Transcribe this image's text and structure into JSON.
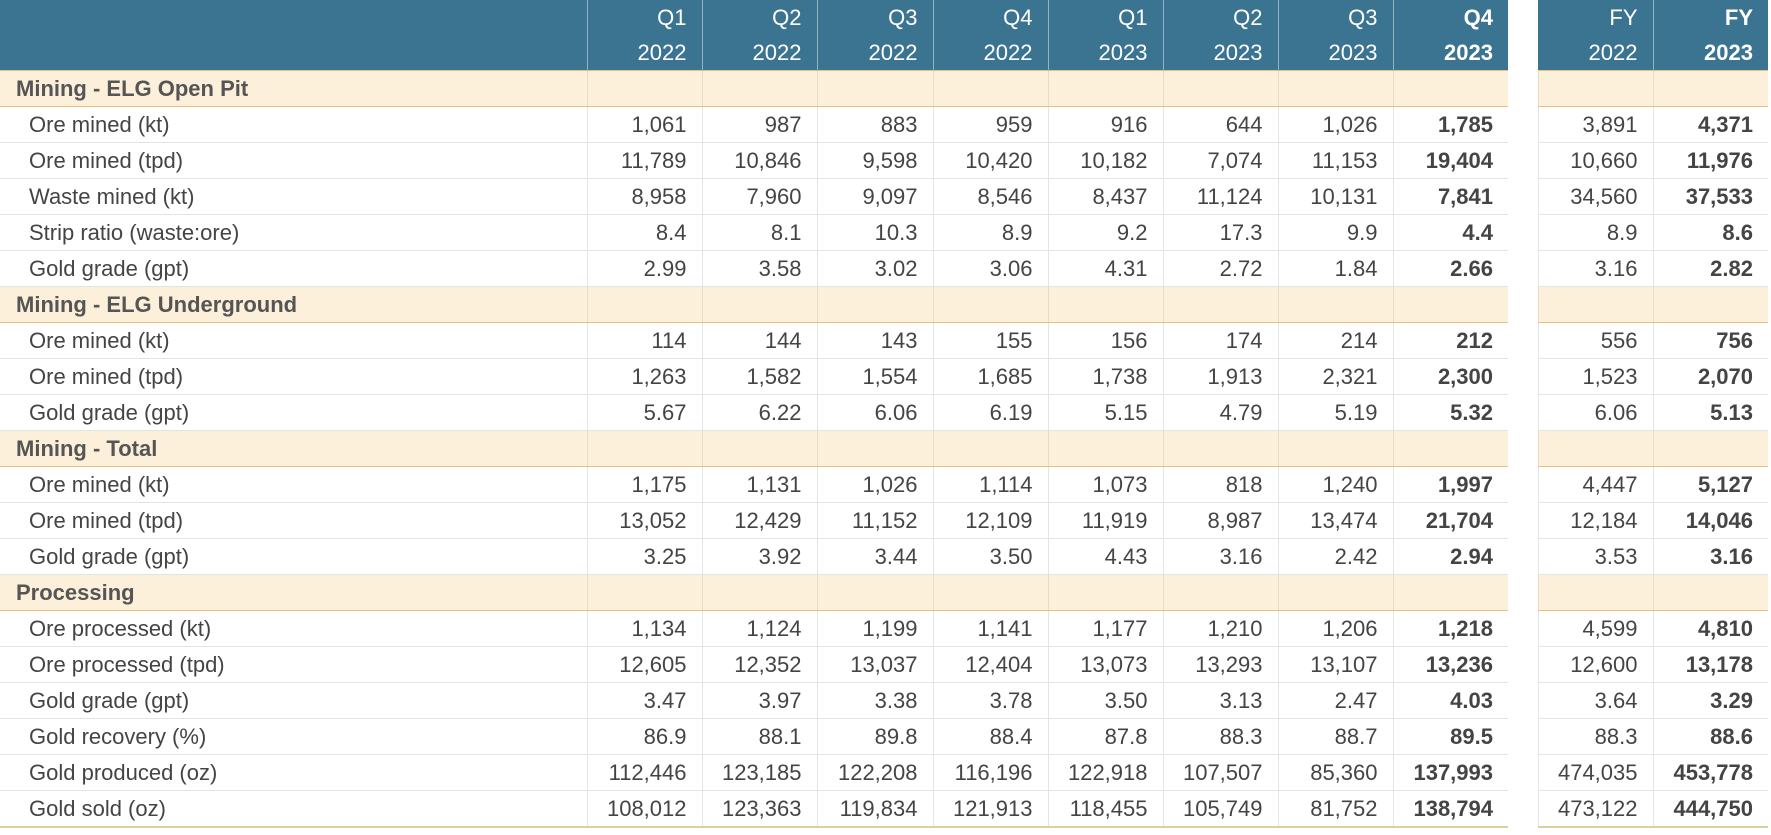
{
  "columns": [
    {
      "line1": "Q1",
      "line2": "2022",
      "bold": false
    },
    {
      "line1": "Q2",
      "line2": "2022",
      "bold": false
    },
    {
      "line1": "Q3",
      "line2": "2022",
      "bold": false
    },
    {
      "line1": "Q4",
      "line2": "2022",
      "bold": false
    },
    {
      "line1": "Q1",
      "line2": "2023",
      "bold": false
    },
    {
      "line1": "Q2",
      "line2": "2023",
      "bold": false
    },
    {
      "line1": "Q3",
      "line2": "2023",
      "bold": false
    },
    {
      "line1": "Q4",
      "line2": "2023",
      "bold": true
    },
    {
      "line1": "FY",
      "line2": "2022",
      "bold": false
    },
    {
      "line1": "FY",
      "line2": "2023",
      "bold": true
    }
  ],
  "sections": [
    {
      "title": "Mining - ELG Open Pit",
      "rows": [
        {
          "label": "Ore mined (kt)",
          "values": [
            "1,061",
            "987",
            "883",
            "959",
            "916",
            "644",
            "1,026",
            "1,785",
            "3,891",
            "4,371"
          ]
        },
        {
          "label": "Ore mined (tpd)",
          "values": [
            "11,789",
            "10,846",
            "9,598",
            "10,420",
            "10,182",
            "7,074",
            "11,153",
            "19,404",
            "10,660",
            "11,976"
          ]
        },
        {
          "label": "Waste mined (kt)",
          "values": [
            "8,958",
            "7,960",
            "9,097",
            "8,546",
            "8,437",
            "11,124",
            "10,131",
            "7,841",
            "34,560",
            "37,533"
          ]
        },
        {
          "label": "Strip ratio (waste:ore)",
          "values": [
            "8.4",
            "8.1",
            "10.3",
            "8.9",
            "9.2",
            "17.3",
            "9.9",
            "4.4",
            "8.9",
            "8.6"
          ]
        },
        {
          "label": "Gold grade (gpt)",
          "values": [
            "2.99",
            "3.58",
            "3.02",
            "3.06",
            "4.31",
            "2.72",
            "1.84",
            "2.66",
            "3.16",
            "2.82"
          ]
        }
      ]
    },
    {
      "title": "Mining - ELG Underground",
      "rows": [
        {
          "label": "Ore mined (kt)",
          "values": [
            "114",
            "144",
            "143",
            "155",
            "156",
            "174",
            "214",
            "212",
            "556",
            "756"
          ]
        },
        {
          "label": "Ore mined (tpd)",
          "values": [
            "1,263",
            "1,582",
            "1,554",
            "1,685",
            "1,738",
            "1,913",
            "2,321",
            "2,300",
            "1,523",
            "2,070"
          ]
        },
        {
          "label": "Gold grade (gpt)",
          "values": [
            "5.67",
            "6.22",
            "6.06",
            "6.19",
            "5.15",
            "4.79",
            "5.19",
            "5.32",
            "6.06",
            "5.13"
          ]
        }
      ]
    },
    {
      "title": "Mining - Total",
      "rows": [
        {
          "label": "Ore mined (kt)",
          "values": [
            "1,175",
            "1,131",
            "1,026",
            "1,114",
            "1,073",
            "818",
            "1,240",
            "1,997",
            "4,447",
            "5,127"
          ]
        },
        {
          "label": "Ore mined (tpd)",
          "values": [
            "13,052",
            "12,429",
            "11,152",
            "12,109",
            "11,919",
            "8,987",
            "13,474",
            "21,704",
            "12,184",
            "14,046"
          ]
        },
        {
          "label": "Gold grade (gpt)",
          "values": [
            "3.25",
            "3.92",
            "3.44",
            "3.50",
            "4.43",
            "3.16",
            "2.42",
            "2.94",
            "3.53",
            "3.16"
          ]
        }
      ]
    },
    {
      "title": "Processing",
      "rows": [
        {
          "label": "Ore processed (kt)",
          "values": [
            "1,134",
            "1,124",
            "1,199",
            "1,141",
            "1,177",
            "1,210",
            "1,206",
            "1,218",
            "4,599",
            "4,810"
          ]
        },
        {
          "label": "Ore processed (tpd)",
          "values": [
            "12,605",
            "12,352",
            "13,037",
            "12,404",
            "13,073",
            "13,293",
            "13,107",
            "13,236",
            "12,600",
            "13,178"
          ]
        },
        {
          "label": "Gold grade (gpt)",
          "values": [
            "3.47",
            "3.97",
            "3.38",
            "3.78",
            "3.50",
            "3.13",
            "2.47",
            "4.03",
            "3.64",
            "3.29"
          ]
        },
        {
          "label": "Gold recovery (%)",
          "values": [
            "86.9",
            "88.1",
            "89.8",
            "88.4",
            "87.8",
            "88.3",
            "88.7",
            "89.5",
            "88.3",
            "88.6"
          ]
        },
        {
          "label": "Gold produced (oz)",
          "values": [
            "112,446",
            "123,185",
            "122,208",
            "116,196",
            "122,918",
            "107,507",
            "85,360",
            "137,993",
            "474,035",
            "453,778"
          ]
        },
        {
          "label": "Gold sold (oz)",
          "values": [
            "108,012",
            "123,363",
            "119,834",
            "121,913",
            "118,455",
            "105,749",
            "81,752",
            "138,794",
            "473,122",
            "444,750"
          ]
        }
      ]
    }
  ]
}
